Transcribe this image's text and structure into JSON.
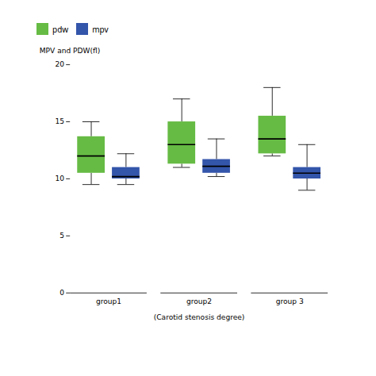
{
  "chart_data": {
    "type": "box",
    "xlabel": "(Carotid stenosis degree)",
    "ylabel": "MPV and PDW(fl)",
    "categories": [
      "group1",
      "group2",
      "group 3"
    ],
    "series": [
      {
        "name": "pdw",
        "color": "#66bb44",
        "values": [
          {
            "whislo": 9.5,
            "q1": 10.5,
            "med": 12.0,
            "q3": 13.7,
            "whishi": 15.0
          },
          {
            "whislo": 11.0,
            "q1": 11.3,
            "med": 13.0,
            "q3": 15.0,
            "whishi": 17.0
          },
          {
            "whislo": 12.0,
            "q1": 12.2,
            "med": 13.5,
            "q3": 15.5,
            "whishi": 18.0
          }
        ]
      },
      {
        "name": "mpv",
        "color": "#3355aa",
        "values": [
          {
            "whislo": 9.5,
            "q1": 10.0,
            "med": 10.2,
            "q3": 11.0,
            "whishi": 12.2
          },
          {
            "whislo": 10.2,
            "q1": 10.5,
            "med": 11.1,
            "q3": 11.7,
            "whishi": 13.5
          },
          {
            "whislo": 9.0,
            "q1": 10.0,
            "med": 10.5,
            "q3": 11.0,
            "whishi": 13.0
          }
        ]
      }
    ],
    "ylim": [
      0,
      20
    ],
    "yticks": [
      0,
      5,
      10,
      15,
      20
    ],
    "legend": "upper left"
  }
}
